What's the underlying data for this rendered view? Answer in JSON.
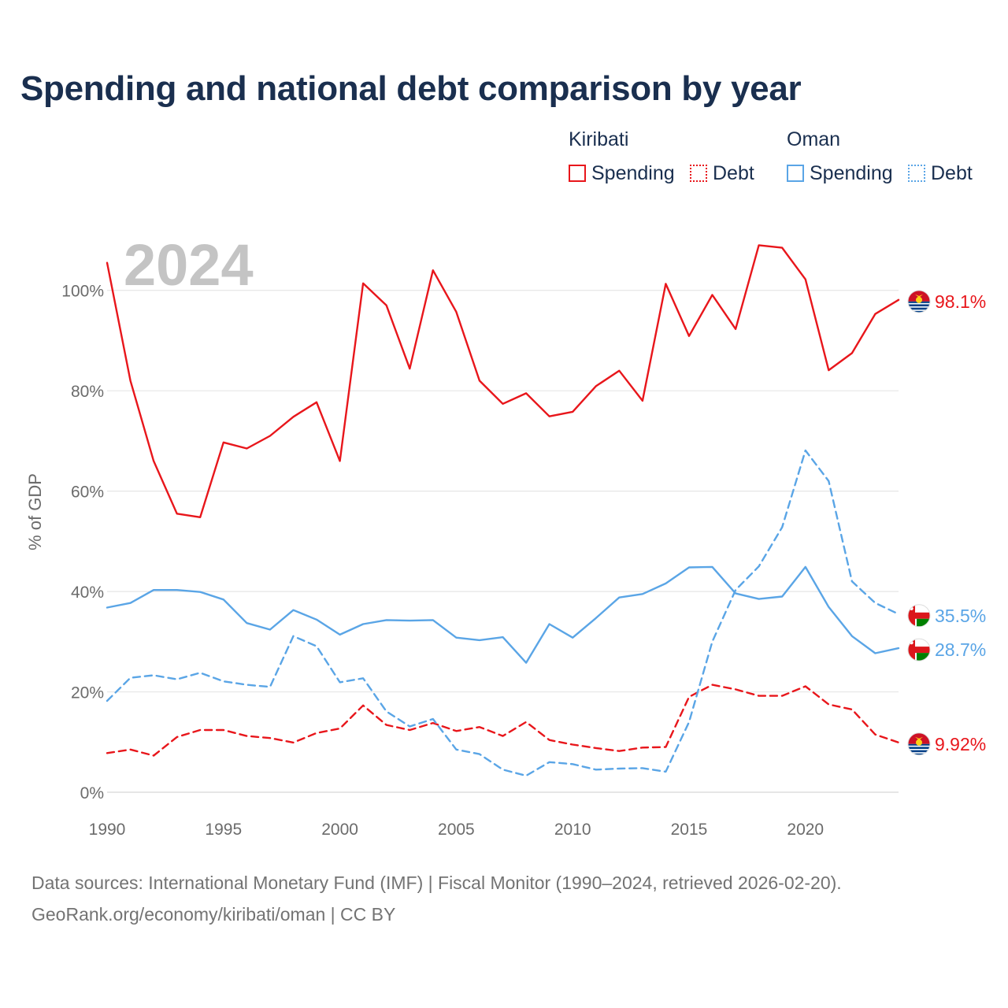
{
  "title": "Spending and national debt comparison by year",
  "legend": {
    "groups": [
      {
        "name": "Kiribati",
        "items": [
          {
            "label": "Spending",
            "color": "#e8161b",
            "style": "solid"
          },
          {
            "label": "Debt",
            "color": "#e8161b",
            "style": "dotted"
          }
        ]
      },
      {
        "name": "Oman",
        "items": [
          {
            "label": "Spending",
            "color": "#5aa5e6",
            "style": "solid"
          },
          {
            "label": "Debt",
            "color": "#5aa5e6",
            "style": "dotted"
          }
        ]
      }
    ]
  },
  "source": {
    "line1": "Data sources: International Monetary Fund (IMF) | Fiscal Monitor (1990–2024, retrieved 2026-02-20).",
    "line2": "GeoRank.org/economy/kiribati/oman | CC BY"
  },
  "chart_data": {
    "type": "line",
    "title": "Spending and national debt comparison by year",
    "ylabel": "% of GDP",
    "xlabel": "",
    "watermark_year": "2024",
    "xlim": [
      1990,
      2024
    ],
    "ylim": [
      0,
      110
    ],
    "yticks": [
      0,
      20,
      40,
      60,
      80,
      100
    ],
    "ytick_labels": [
      "0%",
      "20%",
      "40%",
      "60%",
      "80%",
      "100%"
    ],
    "xticks": [
      1990,
      1995,
      2000,
      2005,
      2010,
      2015,
      2020
    ],
    "xtick_labels": [
      "1990",
      "1995",
      "2000",
      "2005",
      "2010",
      "2015",
      "2020"
    ],
    "grid": true,
    "x": [
      1990,
      1991,
      1992,
      1993,
      1994,
      1995,
      1996,
      1997,
      1998,
      1999,
      2000,
      2001,
      2002,
      2003,
      2004,
      2005,
      2006,
      2007,
      2008,
      2009,
      2010,
      2011,
      2012,
      2013,
      2014,
      2015,
      2016,
      2017,
      2018,
      2019,
      2020,
      2021,
      2022,
      2023,
      2024
    ],
    "series": [
      {
        "name": "Kiribati Spending",
        "country": "Kiribati",
        "color": "#e8161b",
        "dash": "solid",
        "end_label": "98.1%",
        "flag": "kiribati",
        "values": [
          105.5,
          82.0,
          66.0,
          55.5,
          54.8,
          69.7,
          68.5,
          71.0,
          74.8,
          77.7,
          66.0,
          101.4,
          97.0,
          84.4,
          104.0,
          95.7,
          82.0,
          77.4,
          79.5,
          74.9,
          75.8,
          80.9,
          84.0,
          78.0,
          101.3,
          90.9,
          99.1,
          92.3,
          109.0,
          108.5,
          102.2,
          84.1,
          87.5,
          95.3,
          98.1
        ]
      },
      {
        "name": "Kiribati Debt",
        "country": "Kiribati",
        "color": "#e8161b",
        "dash": "dashed",
        "end_label": "9.92%",
        "flag": "kiribati",
        "values": [
          7.8,
          8.5,
          7.3,
          11.0,
          12.4,
          12.4,
          11.2,
          10.8,
          9.9,
          11.8,
          12.7,
          17.3,
          13.4,
          12.4,
          13.8,
          12.2,
          13.0,
          11.2,
          14.0,
          10.4,
          9.5,
          8.8,
          8.2,
          8.9,
          9.0,
          19.0,
          21.4,
          20.5,
          19.2,
          19.2,
          21.1,
          17.5,
          16.5,
          11.5,
          9.92
        ]
      },
      {
        "name": "Oman Spending",
        "country": "Oman",
        "color": "#5aa5e6",
        "dash": "solid",
        "end_label": "28.7%",
        "flag": "oman",
        "values": [
          36.8,
          37.7,
          40.3,
          40.3,
          39.9,
          38.4,
          33.7,
          32.4,
          36.3,
          34.4,
          31.4,
          33.5,
          34.3,
          34.2,
          34.3,
          30.8,
          30.3,
          30.9,
          25.8,
          33.5,
          30.8,
          34.7,
          38.8,
          39.5,
          41.6,
          44.8,
          44.9,
          39.6,
          38.5,
          39.0,
          44.9,
          36.9,
          31.1,
          27.7,
          28.7
        ]
      },
      {
        "name": "Oman Debt",
        "country": "Oman",
        "color": "#5aa5e6",
        "dash": "dashed",
        "end_label": "35.5%",
        "flag": "oman",
        "values": [
          18.2,
          22.8,
          23.3,
          22.5,
          23.8,
          22.1,
          21.4,
          21.0,
          31.1,
          29.1,
          21.9,
          22.7,
          16.1,
          13.1,
          14.6,
          8.5,
          7.6,
          4.5,
          3.3,
          6.0,
          5.6,
          4.5,
          4.7,
          4.8,
          4.1,
          14.0,
          30.0,
          40.3,
          45.0,
          52.8,
          68.1,
          62.0,
          42.0,
          37.7,
          35.5
        ]
      }
    ]
  }
}
